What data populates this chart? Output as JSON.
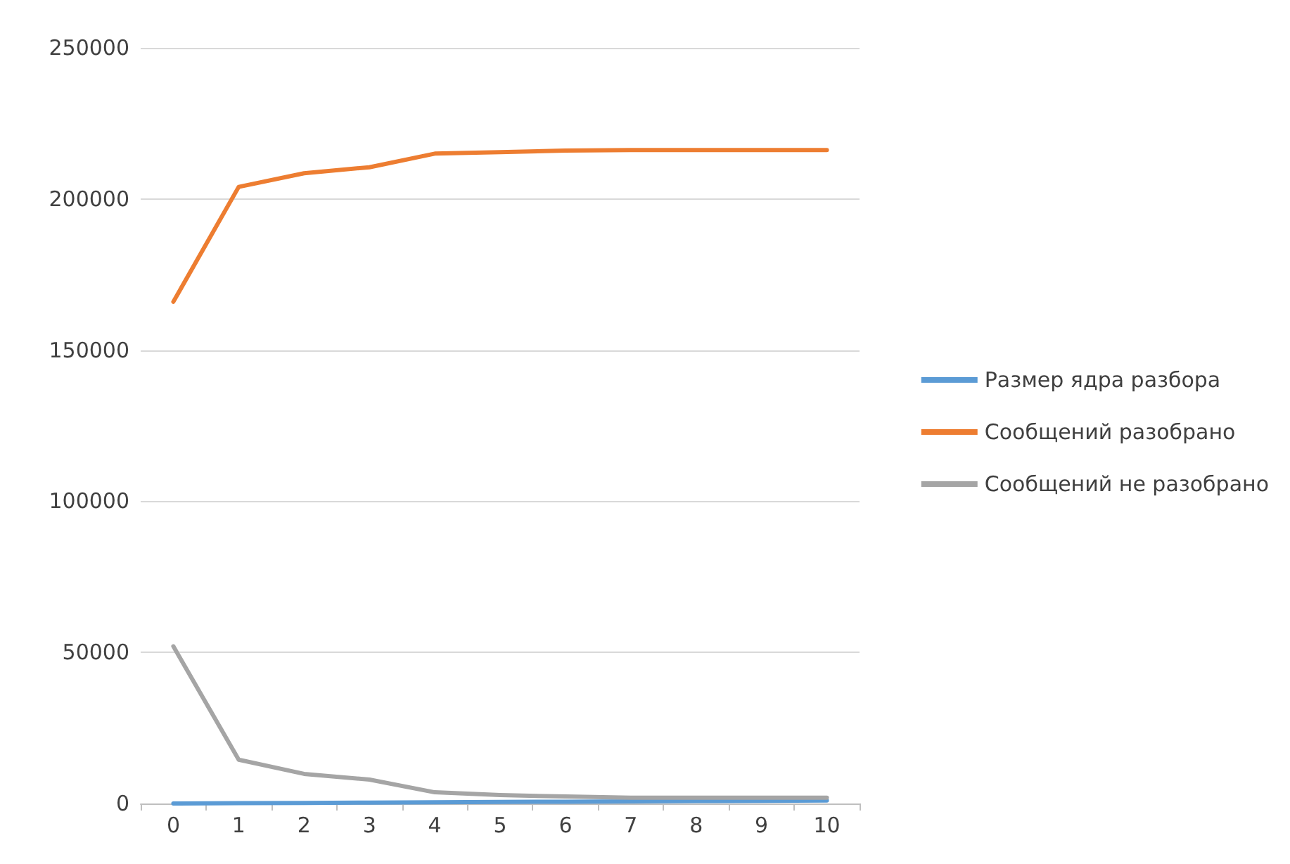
{
  "chart_data": {
    "type": "line",
    "categories": [
      "0",
      "1",
      "2",
      "3",
      "4",
      "5",
      "6",
      "7",
      "8",
      "9",
      "10"
    ],
    "series": [
      {
        "name": "Размер ядра разбора",
        "color": "#5b9bd5",
        "values": [
          0,
          100,
          200,
          300,
          400,
          500,
          600,
          700,
          800,
          900,
          1000
        ]
      },
      {
        "name": "Сообщений разобрано",
        "color": "#ed7d31",
        "values": [
          166000,
          204000,
          208500,
          210500,
          215000,
          215500,
          216000,
          216200,
          216200,
          216200,
          216200
        ]
      },
      {
        "name": "Сообщений не разобрано",
        "color": "#a5a5a5",
        "values": [
          52000,
          14500,
          9800,
          7900,
          3700,
          2800,
          2300,
          1900,
          1900,
          1900,
          1900
        ]
      }
    ],
    "ylim": [
      0,
      250000
    ],
    "yticks": [
      0,
      50000,
      100000,
      150000,
      200000,
      250000
    ],
    "grid": "y",
    "legend": "right",
    "marker": "none",
    "line_style": "solid"
  }
}
